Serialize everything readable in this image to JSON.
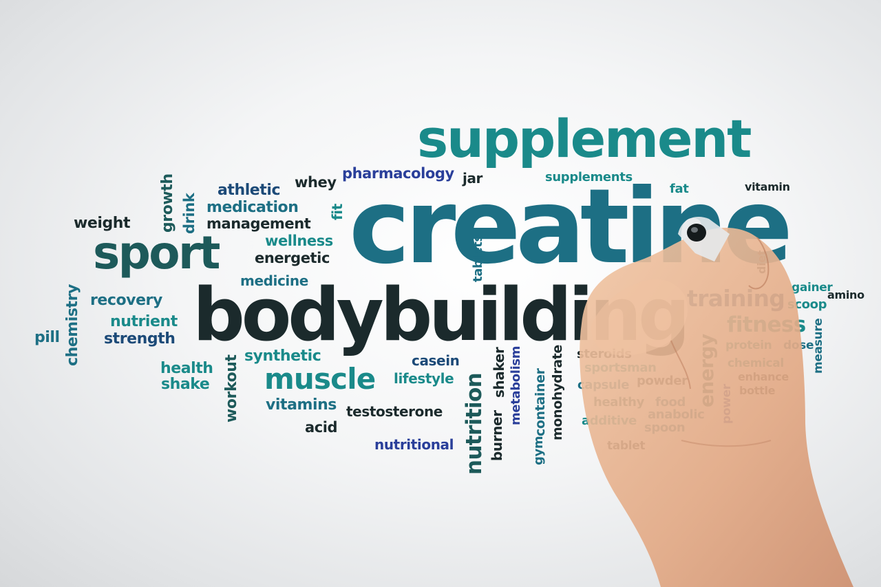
{
  "colors": {
    "background": "#f2f3f4",
    "dark": "#1b2a2c",
    "teal": "#1a8a8a",
    "deep_teal": "#1d6f84",
    "blue": "#2a3f9a",
    "navy": "#1c4a78",
    "skin": "#e9b591"
  },
  "words": [
    {
      "id": "supplement",
      "text": "supplement",
      "color": "#1a8a8a"
    },
    {
      "id": "creatine",
      "text": "creatine",
      "color": "#1d6f84"
    },
    {
      "id": "bodybuilding",
      "text": "bodybuilding",
      "color": "#1b2a2c"
    },
    {
      "id": "sport",
      "text": "sport",
      "color": "#1d5a5a"
    },
    {
      "id": "muscle",
      "text": "muscle",
      "color": "#1a8a8a"
    },
    {
      "id": "training",
      "text": "training",
      "color": "#1c4a78"
    },
    {
      "id": "fitness",
      "text": "fitness",
      "color": "#1a8a8a"
    },
    {
      "id": "pharmacology",
      "text": "pharmacology",
      "color": "#2a3f9a"
    },
    {
      "id": "jar",
      "text": "jar",
      "color": "#1b2a2c"
    },
    {
      "id": "supplements",
      "text": "supplements",
      "color": "#1a8a8a"
    },
    {
      "id": "whey",
      "text": "whey",
      "color": "#1b2a2c"
    },
    {
      "id": "athletic",
      "text": "athletic",
      "color": "#1c4a78"
    },
    {
      "id": "medication",
      "text": "medication",
      "color": "#1d6f84"
    },
    {
      "id": "management",
      "text": "management",
      "color": "#1b2a2c"
    },
    {
      "id": "wellness",
      "text": "wellness",
      "color": "#1a8a8a"
    },
    {
      "id": "energetic",
      "text": "energetic",
      "color": "#1b2a2c"
    },
    {
      "id": "medicine",
      "text": "medicine",
      "color": "#1d6f84"
    },
    {
      "id": "weight",
      "text": "weight",
      "color": "#1b2a2c"
    },
    {
      "id": "growth",
      "text": "growth",
      "color": "#1d5a5a"
    },
    {
      "id": "drink",
      "text": "drink",
      "color": "#1d6f84"
    },
    {
      "id": "fit",
      "text": "fit",
      "color": "#1a8a8a"
    },
    {
      "id": "fat",
      "text": "fat",
      "color": "#1a8a8a"
    },
    {
      "id": "vitamin",
      "text": "vitamin",
      "color": "#1b2a2c"
    },
    {
      "id": "tablets",
      "text": "tablets",
      "color": "#1d6f84"
    },
    {
      "id": "diet",
      "text": "diet",
      "color": "#1b2a2c"
    },
    {
      "id": "chemistry",
      "text": "chemistry",
      "color": "#1d6f84"
    },
    {
      "id": "recovery",
      "text": "recovery",
      "color": "#1d6f84"
    },
    {
      "id": "nutrient",
      "text": "nutrient",
      "color": "#1a8a8a"
    },
    {
      "id": "strength",
      "text": "strength",
      "color": "#1c4a78"
    },
    {
      "id": "pill",
      "text": "pill",
      "color": "#1d6f84"
    },
    {
      "id": "health",
      "text": "health",
      "color": "#1a8a8a"
    },
    {
      "id": "shake",
      "text": "shake",
      "color": "#1a8a8a"
    },
    {
      "id": "workout",
      "text": "workout",
      "color": "#1d5a5a"
    },
    {
      "id": "synthetic",
      "text": "synthetic",
      "color": "#1a8a8a"
    },
    {
      "id": "casein",
      "text": "casein",
      "color": "#1c4a78"
    },
    {
      "id": "lifestyle",
      "text": "lifestyle",
      "color": "#1a8a8a"
    },
    {
      "id": "vitamins",
      "text": "vitamins",
      "color": "#1d6f84"
    },
    {
      "id": "testosterone",
      "text": "testosterone",
      "color": "#1b2a2c"
    },
    {
      "id": "acid",
      "text": "acid",
      "color": "#1b2a2c"
    },
    {
      "id": "nutritional",
      "text": "nutritional",
      "color": "#2a3f9a"
    },
    {
      "id": "nutrition",
      "text": "nutrition",
      "color": "#1d5a5a"
    },
    {
      "id": "burner",
      "text": "burner",
      "color": "#1b2a2c"
    },
    {
      "id": "shaker",
      "text": "shaker",
      "color": "#1b2a2c"
    },
    {
      "id": "metabolism",
      "text": "metabolism",
      "color": "#2a3f9a"
    },
    {
      "id": "gym",
      "text": "gym",
      "color": "#1d6f84"
    },
    {
      "id": "container",
      "text": "container",
      "color": "#1d6f84"
    },
    {
      "id": "monohydrate",
      "text": "monohydrate",
      "color": "#1b2a2c"
    },
    {
      "id": "steroids",
      "text": "steroids",
      "color": "#1b2a2c"
    },
    {
      "id": "sportsman",
      "text": "sportsman",
      "color": "#1a8a8a"
    },
    {
      "id": "capsule",
      "text": "capsule",
      "color": "#1d6f84"
    },
    {
      "id": "powder",
      "text": "powder",
      "color": "#1b2a2c"
    },
    {
      "id": "healthy",
      "text": "healthy",
      "color": "#1d5a5a"
    },
    {
      "id": "food",
      "text": "food",
      "color": "#1d6f84"
    },
    {
      "id": "additive",
      "text": "additive",
      "color": "#1a8a8a"
    },
    {
      "id": "anabolic",
      "text": "anabolic",
      "color": "#1d6f84"
    },
    {
      "id": "spoon",
      "text": "spoon",
      "color": "#1d6f84"
    },
    {
      "id": "tablet",
      "text": "tablet",
      "color": "#1b2a2c"
    },
    {
      "id": "energy",
      "text": "energy",
      "color": "#1d5a5a"
    },
    {
      "id": "power",
      "text": "power",
      "color": "#2a3f9a"
    },
    {
      "id": "gainer",
      "text": "gainer",
      "color": "#1a8a8a"
    },
    {
      "id": "amino",
      "text": "amino",
      "color": "#1b2a2c"
    },
    {
      "id": "scoop",
      "text": "scoop",
      "color": "#1a8a8a"
    },
    {
      "id": "protein",
      "text": "protein",
      "color": "#1a8a8a"
    },
    {
      "id": "dose",
      "text": "dose",
      "color": "#1d6f84"
    },
    {
      "id": "measure",
      "text": "measure",
      "color": "#1d6f84"
    },
    {
      "id": "chemical",
      "text": "chemical",
      "color": "#1a8a8a"
    },
    {
      "id": "enhance",
      "text": "enhance",
      "color": "#1b2a2c"
    },
    {
      "id": "bottle",
      "text": "bottle",
      "color": "#1b2a2c"
    }
  ]
}
